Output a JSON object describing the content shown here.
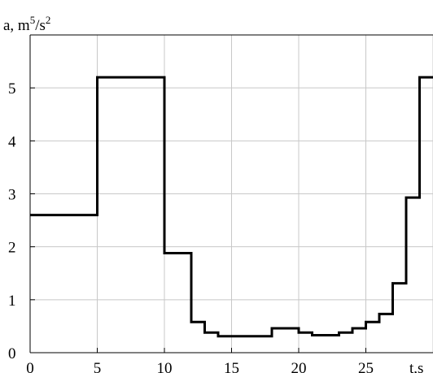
{
  "chart_data": {
    "type": "line",
    "step": true,
    "xlabel": "t,s",
    "ylabel": {
      "base": "a, m",
      "exp1": "5",
      "slash": "/s",
      "exp2": "2"
    },
    "xlim": [
      0,
      30
    ],
    "ylim": [
      0,
      6
    ],
    "x_ticks": [
      0,
      5,
      10,
      15,
      20,
      25
    ],
    "y_ticks": [
      0,
      1,
      2,
      3,
      4,
      5
    ],
    "grid": true,
    "series": [
      {
        "line_color": "#000000",
        "points": [
          [
            0,
            2.6
          ],
          [
            5,
            2.6
          ],
          [
            5,
            5.2
          ],
          [
            10,
            5.2
          ],
          [
            10,
            1.88
          ],
          [
            12,
            1.88
          ],
          [
            12,
            0.58
          ],
          [
            13,
            0.58
          ],
          [
            13,
            0.38
          ],
          [
            14,
            0.38
          ],
          [
            14,
            0.31
          ],
          [
            18,
            0.31
          ],
          [
            18,
            0.46
          ],
          [
            20,
            0.46
          ],
          [
            20,
            0.38
          ],
          [
            21,
            0.38
          ],
          [
            21,
            0.33
          ],
          [
            23,
            0.33
          ],
          [
            23,
            0.38
          ],
          [
            24,
            0.38
          ],
          [
            24,
            0.46
          ],
          [
            25,
            0.46
          ],
          [
            25,
            0.58
          ],
          [
            26,
            0.58
          ],
          [
            26,
            0.73
          ],
          [
            27,
            0.73
          ],
          [
            27,
            1.31
          ],
          [
            28,
            1.31
          ],
          [
            28,
            2.93
          ],
          [
            29,
            2.93
          ],
          [
            29,
            5.2
          ],
          [
            30,
            5.2
          ]
        ]
      }
    ],
    "grid_color": "#c8c8c8",
    "frame_color": "#000000"
  }
}
